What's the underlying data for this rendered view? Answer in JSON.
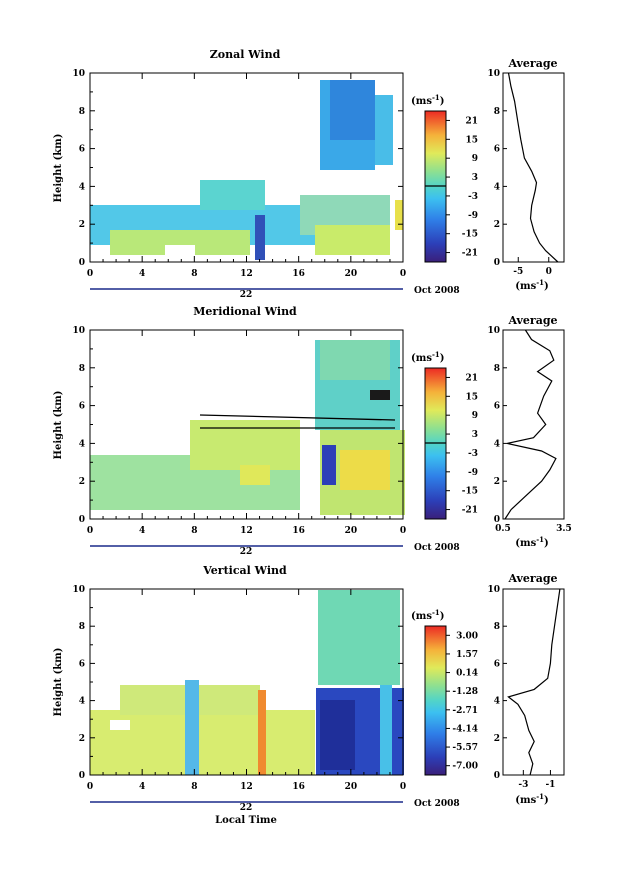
{
  "chart_data": [
    {
      "type": "heatmap",
      "title": "Zonal Wind",
      "ylabel": "Height (km)",
      "ylim": [
        0,
        10
      ],
      "xlim": [
        0,
        24
      ],
      "x_ticks": [
        "0",
        "4",
        "8",
        "12",
        "16",
        "20",
        "0"
      ],
      "y_ticks": [
        "0",
        "2",
        "4",
        "6",
        "8",
        "10"
      ],
      "date_label": "22",
      "month_label": "Oct 2008",
      "colorbar": {
        "unit": "(ms",
        "unit_exp": "-1",
        "unit_close": ")",
        "labels": [
          "21",
          "15",
          "9",
          "3",
          "-3",
          "-9",
          "-15",
          "-21"
        ]
      },
      "average": {
        "title": "Average",
        "xlabel": "(ms",
        "xlabel_exp": "-1",
        "xlabel_close": ")",
        "x_ticks": [
          "-5",
          "0"
        ],
        "xlim": [
          -7.5,
          2.5
        ],
        "profile": [
          [
            1.5,
            0
          ],
          [
            0.5,
            0.3
          ],
          [
            -0.5,
            0.6
          ],
          [
            -1.5,
            1.0
          ],
          [
            -2.4,
            1.6
          ],
          [
            -3.0,
            2.3
          ],
          [
            -2.8,
            3.0
          ],
          [
            -2.2,
            3.8
          ],
          [
            -2.0,
            4.2
          ],
          [
            -2.8,
            4.8
          ],
          [
            -4.0,
            5.5
          ],
          [
            -4.6,
            6.5
          ],
          [
            -5.1,
            7.5
          ],
          [
            -5.6,
            8.5
          ],
          [
            -6.2,
            9.3
          ],
          [
            -6.6,
            10
          ]
        ]
      }
    },
    {
      "type": "heatmap",
      "title": "Meridional Wind",
      "ylabel": "Height (km)",
      "ylim": [
        0,
        10
      ],
      "xlim": [
        0,
        24
      ],
      "x_ticks": [
        "0",
        "4",
        "8",
        "12",
        "16",
        "20",
        "0"
      ],
      "y_ticks": [
        "0",
        "2",
        "4",
        "6",
        "8",
        "10"
      ],
      "date_label": "22",
      "month_label": "Oct 2008",
      "colorbar": {
        "unit": "(ms",
        "unit_exp": "-1",
        "unit_close": ")",
        "labels": [
          "21",
          "15",
          "9",
          "3",
          "-3",
          "-9",
          "-15",
          "-21"
        ]
      },
      "average": {
        "title": "Average",
        "xlabel": "(ms",
        "xlabel_exp": "-1",
        "xlabel_close": ")",
        "x_ticks": [
          "0.5",
          "3.5"
        ],
        "xlim": [
          0.5,
          3.5
        ],
        "profile": [
          [
            0.6,
            0
          ],
          [
            0.9,
            0.5
          ],
          [
            1.4,
            1.0
          ],
          [
            1.9,
            1.5
          ],
          [
            2.4,
            2.0
          ],
          [
            2.8,
            2.6
          ],
          [
            3.1,
            3.2
          ],
          [
            2.4,
            3.6
          ],
          [
            0.7,
            4.0
          ],
          [
            2.0,
            4.3
          ],
          [
            2.6,
            5.0
          ],
          [
            2.2,
            5.6
          ],
          [
            2.5,
            6.5
          ],
          [
            2.9,
            7.3
          ],
          [
            2.2,
            7.8
          ],
          [
            3.0,
            8.4
          ],
          [
            2.8,
            8.9
          ],
          [
            1.9,
            9.5
          ],
          [
            1.6,
            10
          ]
        ]
      }
    },
    {
      "type": "heatmap",
      "title": "Vertical Wind",
      "ylabel": "Height (km)",
      "ylim": [
        0,
        10
      ],
      "xlim": [
        0,
        24
      ],
      "x_ticks": [
        "0",
        "4",
        "8",
        "12",
        "16",
        "20",
        "0"
      ],
      "y_ticks": [
        "0",
        "2",
        "4",
        "6",
        "8",
        "10"
      ],
      "date_label": "22",
      "month_label": "Oct 2008",
      "xlabel": "Local Time",
      "colorbar": {
        "unit": "(ms",
        "unit_exp": "-1",
        "unit_close": ")",
        "labels": [
          "3.00",
          "1.57",
          "0.14",
          "-1.28",
          "-2.71",
          "-4.14",
          "-5.57",
          "-7.00"
        ]
      },
      "average": {
        "title": "Average",
        "xlabel": "(ms",
        "xlabel_exp": "-1",
        "xlabel_close": ")",
        "x_ticks": [
          "-3",
          "-1"
        ],
        "xlim": [
          -4.5,
          0
        ],
        "profile": [
          [
            -2.5,
            0
          ],
          [
            -2.3,
            0.6
          ],
          [
            -2.6,
            1.2
          ],
          [
            -2.2,
            1.8
          ],
          [
            -2.6,
            2.4
          ],
          [
            -2.9,
            3.2
          ],
          [
            -3.4,
            3.8
          ],
          [
            -4.1,
            4.2
          ],
          [
            -2.2,
            4.6
          ],
          [
            -1.2,
            5.2
          ],
          [
            -1.0,
            6.0
          ],
          [
            -0.9,
            7.0
          ],
          [
            -0.7,
            8.0
          ],
          [
            -0.5,
            9.0
          ],
          [
            -0.3,
            10
          ]
        ]
      }
    }
  ]
}
